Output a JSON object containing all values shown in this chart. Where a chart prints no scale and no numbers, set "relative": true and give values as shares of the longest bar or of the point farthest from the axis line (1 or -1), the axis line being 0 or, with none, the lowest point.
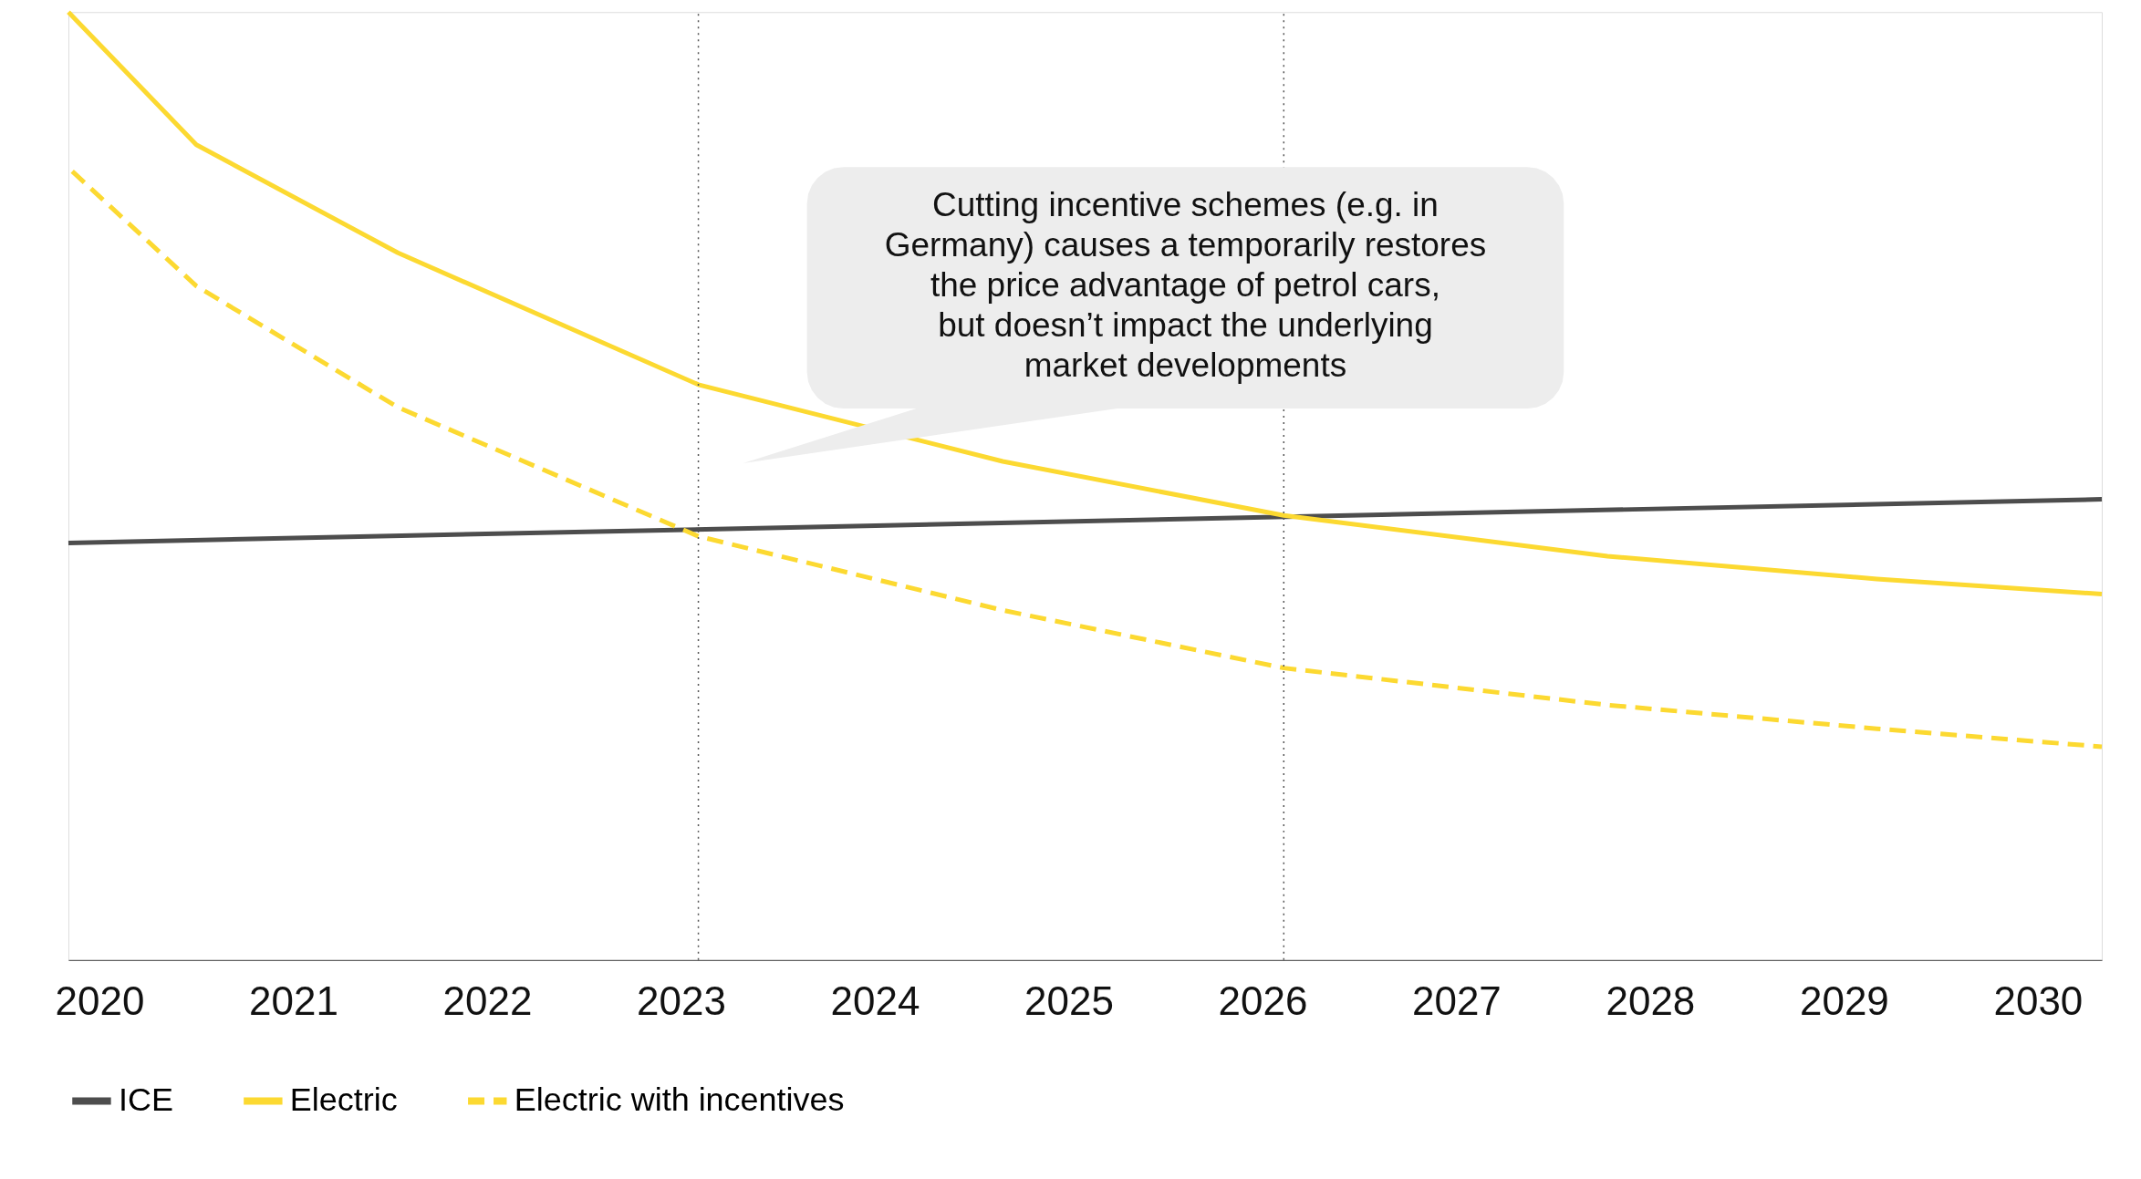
{
  "chart_data": {
    "type": "line",
    "relative": true,
    "xlim": [
      2019.84,
      2030.33
    ],
    "xticks": [
      2020,
      2021,
      2022,
      2023,
      2024,
      2025,
      2026,
      2027,
      2028,
      2029,
      2030
    ],
    "grid": false,
    "legend": "bottom",
    "line_style": "solid",
    "marker": "none",
    "series": [
      {
        "name": "ICE",
        "color": "#4d4d4d",
        "x": [
          2019.84,
          2030.33
        ],
        "values": [
          0.44,
          0.486
        ]
      },
      {
        "name": "Electric",
        "color": "#fcd931",
        "x": [
          2019.84,
          2020.5,
          2021.54,
          2023.09,
          2024.66,
          2026.11,
          2027.78,
          2029.17,
          2030.33
        ],
        "values": [
          1.0,
          0.86,
          0.746,
          0.607,
          0.526,
          0.469,
          0.426,
          0.402,
          0.386
        ]
      },
      {
        "name": "Electric with incentives",
        "color": "#fcd931",
        "line_style": "dashed",
        "x": [
          2019.86,
          2020.5,
          2021.54,
          2023.09,
          2024.66,
          2026.11,
          2027.78,
          2029.17,
          2030.33
        ],
        "values": [
          0.832,
          0.711,
          0.583,
          0.447,
          0.369,
          0.308,
          0.269,
          0.244,
          0.225
        ]
      }
    ],
    "ref_lines": [
      {
        "axis": "x",
        "value": 2023.09,
        "color": "#555555",
        "line_style": "dotted"
      },
      {
        "axis": "x",
        "value": 2026.11,
        "color": "#555555",
        "line_style": "dotted"
      }
    ],
    "annotations": [
      "Cutting incentive schemes (e.g. in Germany) causes a temporarily restores the price advantage of petrol cars, but doesn’t impact the underlying market developments"
    ]
  }
}
